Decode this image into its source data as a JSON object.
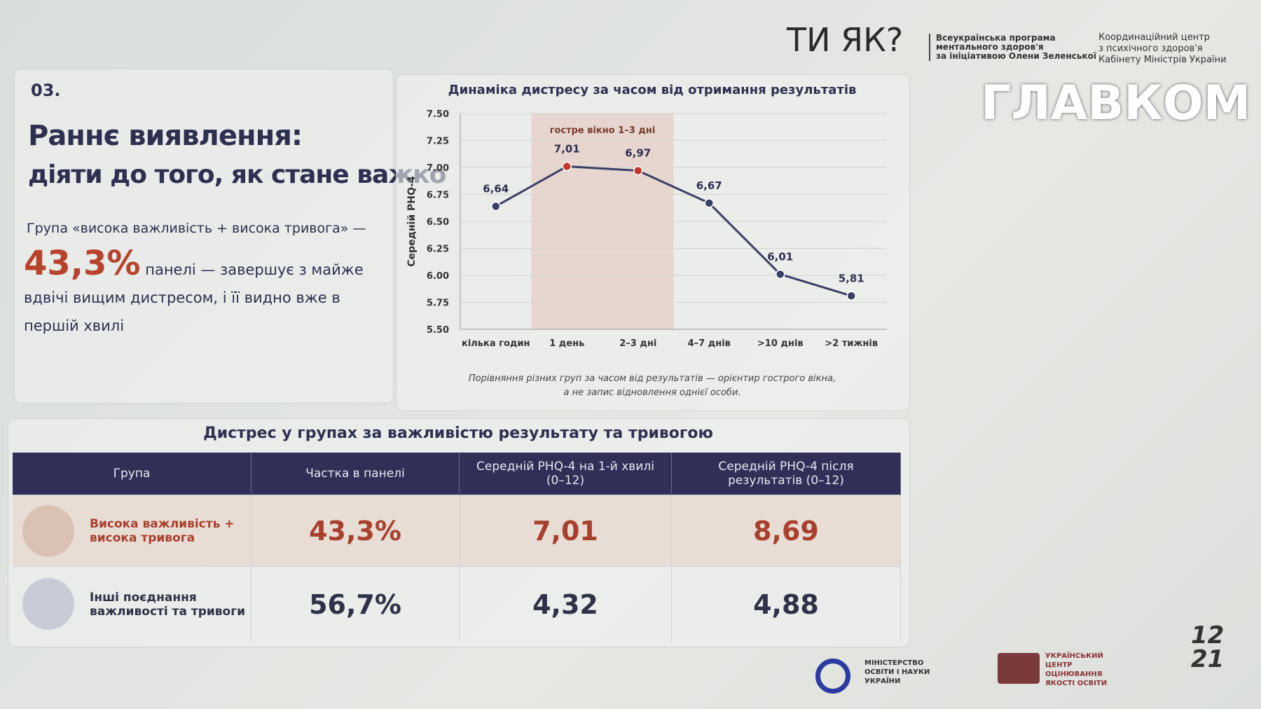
{
  "header": {
    "brand": "ТИ ЯК?",
    "program": [
      "Всеукраїнська програма",
      "ментального здоров'я",
      "за ініціативою Олени Зеленської"
    ],
    "center": [
      "Координаційний центр",
      "з психічного здоров'я",
      "Кабінету Міністрів України"
    ],
    "watermark": "ГЛАВКОМ"
  },
  "slide": {
    "number": "03.",
    "title": [
      "Раннє виявлення:",
      "діяти до того, як стане важко"
    ],
    "lead": "Група «висока важливість + висока тривога» —",
    "highlight": "43,3%",
    "text": "панелі — завершує з майже вдвічі вищим дистресом, і її видно вже в першій хвилі"
  },
  "chart_data": {
    "type": "line",
    "title": "Динаміка дистресу за часом від отримання результатів",
    "y_label": "Середній PHQ-4",
    "categories": [
      "кілька годин",
      "1 день",
      "2–3 дні",
      "4–7 днів",
      ">10 днів",
      ">2 тижнів"
    ],
    "values": [
      6.64,
      7.01,
      6.97,
      6.67,
      6.01,
      5.81
    ],
    "value_labels": [
      "6,64",
      "7,01",
      "6,97",
      "6,67",
      "6,01",
      "5,81"
    ],
    "color": "#3a3f66",
    "point_colors": [
      "#3a3f66",
      "#c0392b",
      "#c0392b",
      "#3a3f66",
      "#3a3f66",
      "#3a3f66"
    ],
    "band": {
      "label": "гостре вікно 1–3 дні",
      "start": 1,
      "end": 2,
      "color": "#e6d6cf"
    },
    "ylim": [
      5.5,
      7.5
    ],
    "yticks": [
      {
        "value": 5.5,
        "label": "5.50"
      },
      5.75,
      {
        "value": 6,
        "label": "6.00"
      },
      6.25,
      {
        "value": 6.5,
        "label": "6.50"
      },
      6.75,
      {
        "value": 7,
        "label": "7.00"
      },
      7.25,
      {
        "value": 7.5,
        "label": "7.50"
      }
    ],
    "grid": true,
    "caption": [
      "Порівняння різних груп за часом від результатів — орієнтир гострого вікна,",
      "а не запис відновлення однієї особи."
    ]
  },
  "table": {
    "title": "Дистрес у групах за важливістю результату та тривогою",
    "header": [
      "Група",
      "Частка в панелі",
      "Середній PHQ-4 на 1-й хвилі (0–12)",
      "Середній PHQ-4 після результатів (0–12)"
    ],
    "rows": [
      [
        "Висока важливість + висока тривога",
        "43,3%",
        "7,01",
        "8,69"
      ],
      [
        "Інші поєднання важливості та тривоги",
        "56,7%",
        "4,32",
        "4,88"
      ]
    ]
  },
  "footer": {
    "ministry": "МІНІСТЕРСТВО ОСВІТИ І НАУКИ УКРАЇНИ",
    "center": "УКРАЇНСЬКИЙ ЦЕНТР ОЦІНЮВАННЯ ЯКОСТІ ОСВІТИ",
    "logo": "12 21"
  }
}
